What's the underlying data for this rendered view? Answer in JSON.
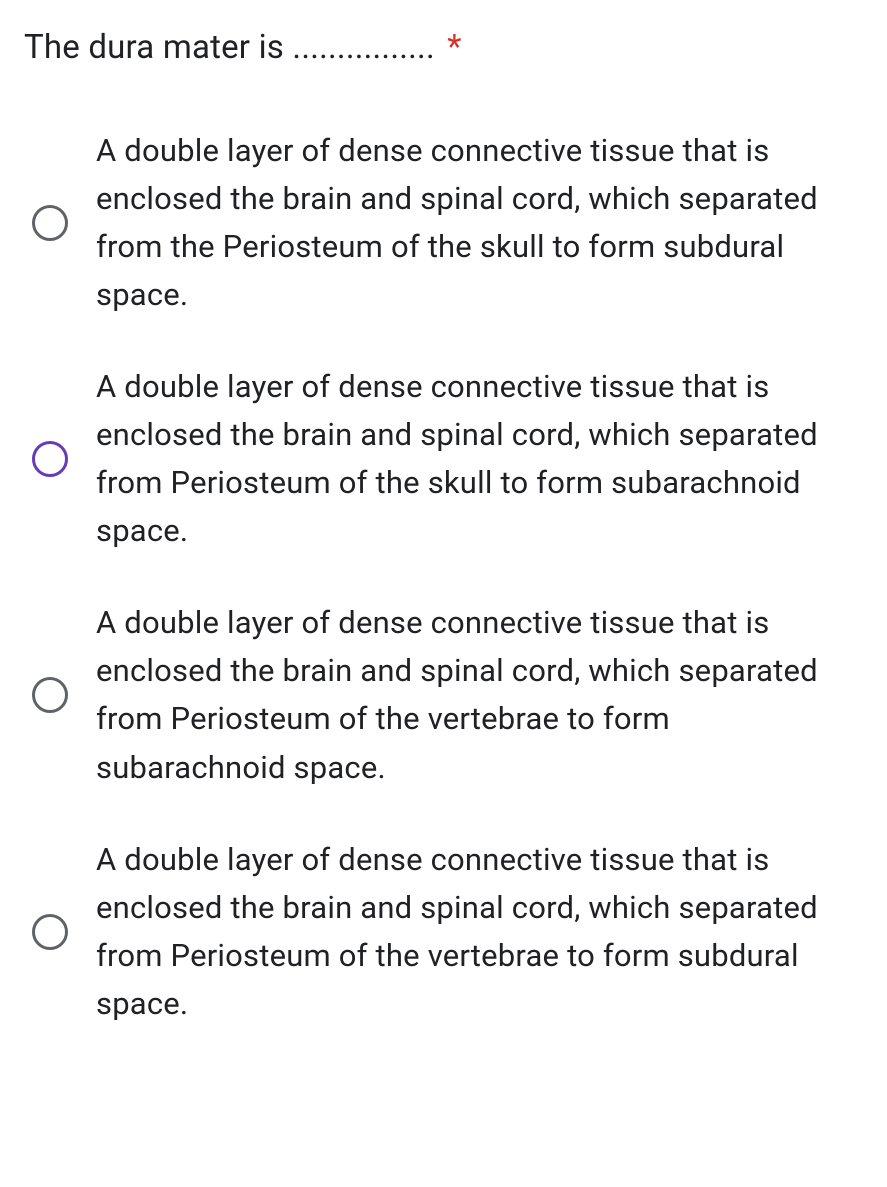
{
  "question": {
    "text": "The dura mater is ................",
    "required_marker": "*"
  },
  "options": [
    {
      "label": "A double layer of dense connective tissue that is enclosed the brain and spinal cord, which separated from the Periosteum of the skull to form subdural space.",
      "highlighted": false
    },
    {
      "label": "A double layer of dense connective tissue that is enclosed the brain and spinal cord, which separated from Periosteum of the skull to form subarachnoid space.",
      "highlighted": true
    },
    {
      "label": "A double layer of dense connective tissue that is enclosed the brain and spinal cord, which separated from Periosteum of the vertebrae to form subarachnoid space.",
      "highlighted": false
    },
    {
      "label": "A double layer of dense connective tissue that is enclosed the brain and spinal cord, which separated from Periosteum of the vertebrae to form subdural space.",
      "highlighted": false
    }
  ],
  "colors": {
    "text": "#202124",
    "radio_border": "#5f6368",
    "radio_highlight": "#673ab7",
    "required": "#d93025",
    "background": "#ffffff"
  }
}
